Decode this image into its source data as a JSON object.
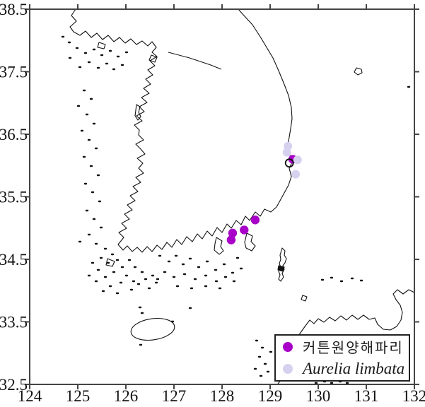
{
  "figure": {
    "background": "#ffffff",
    "axis_color": "#444444",
    "coast_color": "#111111"
  },
  "legend": {
    "items": [
      {
        "label": "커튼원양해파리",
        "color": "#a800c8",
        "italic": false
      },
      {
        "label": "Aurelia limbata",
        "color": "#d6d1ef",
        "italic": true
      }
    ]
  },
  "chart_data": {
    "type": "scatter",
    "title": "",
    "xlabel": "",
    "ylabel": "",
    "xlim": [
      124,
      132
    ],
    "ylim": [
      32.5,
      38.5
    ],
    "x_ticks": [
      124,
      125,
      126,
      127,
      128,
      129,
      130,
      131,
      132
    ],
    "y_ticks": [
      38.5,
      37.5,
      36.5,
      35.5,
      34.5,
      33.5,
      32.5
    ],
    "grid": false,
    "legend_position": "bottom-right",
    "basemap": "korea-coastline",
    "series": [
      {
        "name": "커튼원양해파리",
        "marker": "filled-circle",
        "color": "#a800c8",
        "radius": 6.2,
        "points": [
          [
            128.22,
            34.92
          ],
          [
            128.19,
            34.81
          ],
          [
            128.46,
            34.97
          ],
          [
            128.69,
            35.13
          ],
          [
            129.47,
            36.1
          ]
        ]
      },
      {
        "name": "Aurelia limbata",
        "marker": "filled-circle",
        "color": "#d6d1ef",
        "radius": 6,
        "points": [
          [
            129.37,
            36.31
          ],
          [
            129.35,
            36.21
          ],
          [
            129.57,
            36.09
          ],
          [
            129.53,
            35.86
          ]
        ]
      },
      {
        "name": "unlabeled-open-circle",
        "marker": "open-circle",
        "color": "none",
        "stroke": "#111111",
        "radius": 5.5,
        "points": [
          [
            129.4,
            36.04
          ]
        ]
      }
    ]
  }
}
